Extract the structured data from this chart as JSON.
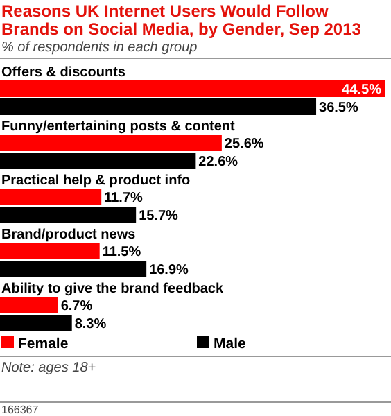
{
  "chart_data": {
    "type": "bar",
    "orientation": "horizontal",
    "title": "Reasons UK Internet Users Would Follow Brands on Social Media, by Gender, Sep 2013",
    "subtitle": "% of respondents in each group",
    "categories": [
      "Offers & discounts",
      "Funny/entertaining posts & content",
      "Practical help & product info",
      "Brand/product news",
      "Ability to give the brand feedback"
    ],
    "series": [
      {
        "name": "Female",
        "color": "#ff0000",
        "values": [
          44.5,
          25.6,
          11.7,
          11.5,
          6.7
        ],
        "value_labels": [
          "44.5%",
          "25.6%",
          "11.7%",
          "11.5%",
          "6.7%"
        ]
      },
      {
        "name": "Male",
        "color": "#000000",
        "values": [
          36.5,
          22.6,
          15.7,
          16.9,
          8.3
        ],
        "value_labels": [
          "36.5%",
          "22.6%",
          "15.7%",
          "16.9%",
          "8.3%"
        ]
      }
    ],
    "legend": "bottom",
    "annotations": [
      "Note: ages 18+",
      "166367"
    ]
  }
}
